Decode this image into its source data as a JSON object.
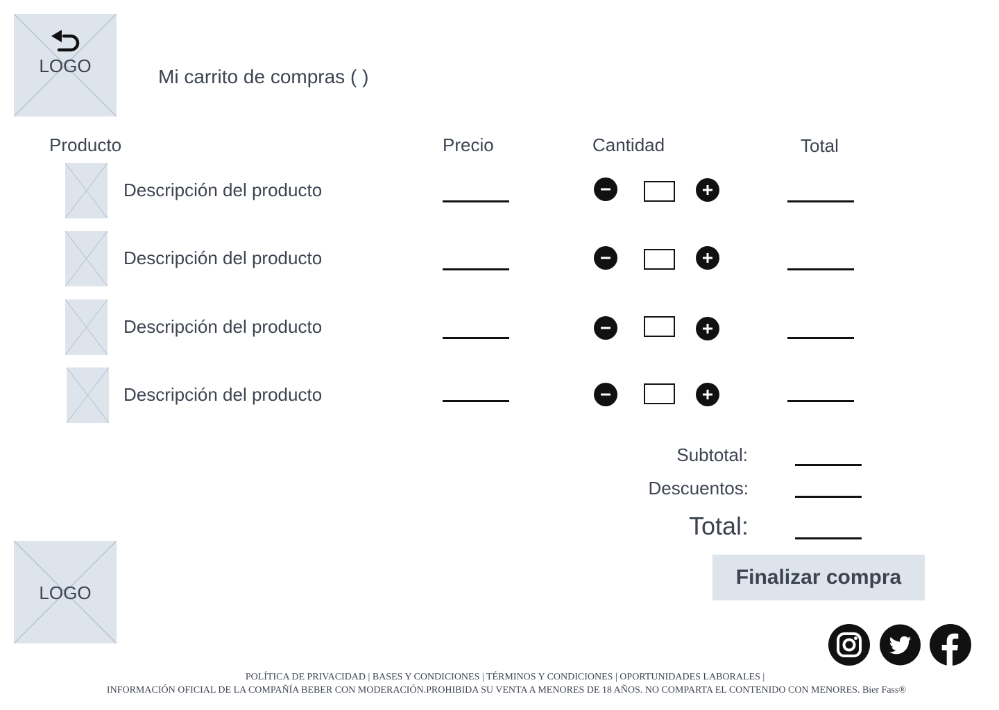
{
  "header": {
    "logo_text": "LOGO",
    "back_icon": "undo-arrow-icon",
    "title": "Mi carrito de compras ( )"
  },
  "table": {
    "columns": [
      "Producto",
      "Precio",
      "Cantidad",
      "Total"
    ],
    "rows": [
      {
        "description": "Descripción del producto",
        "quantity": ""
      },
      {
        "description": "Descripción del producto",
        "quantity": ""
      },
      {
        "description": "Descripción del producto",
        "quantity": ""
      },
      {
        "description": "Descripción del producto",
        "quantity": ""
      }
    ],
    "decrease_icon": "minus-circle-icon",
    "increase_icon": "plus-circle-icon"
  },
  "summary": {
    "subtotal_label": "Subtotal:",
    "discounts_label": "Descuentos:",
    "total_label": "Total:"
  },
  "actions": {
    "finish_label": "Finalizar compra"
  },
  "footer": {
    "logo_text": "LOGO",
    "social_icons": [
      "instagram-icon",
      "twitter-icon",
      "facebook-icon"
    ],
    "links": [
      "POLÍTICA DE PRIVACIDAD",
      "BASES Y CONDICIONES",
      "TÉRMINOS Y CONDICIONES",
      "OPORTUNIDADES LABORALES"
    ],
    "legal": "INFORMACIÓN OFICIAL DE LA COMPAÑÍA BEBER CON MODERACIÓN.PROHIBIDA SU VENTA A MENORES DE 18 AÑOS. NO COMPARTA EL CONTENIDO CON MENORES. Bier Fass®"
  },
  "colors": {
    "placeholder": "#dee4ec",
    "text": "#3d4450",
    "icon": "#111111"
  }
}
